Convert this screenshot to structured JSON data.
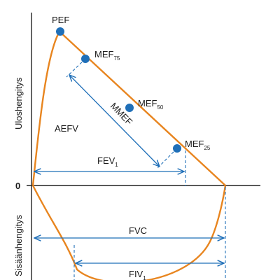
{
  "colors": {
    "curve": "#e8851f",
    "point": "#1f6fb8",
    "arrow": "#1f6fb8",
    "axis": "#222222",
    "text": "#1a1a1a"
  },
  "axes": {
    "y_top_label": "Uloshengitys",
    "y_bottom_label": "Sisäänhengitys",
    "zero_label": "0"
  },
  "labels": {
    "pef": "PEF",
    "mef75": {
      "main": "MEF",
      "sub": "75"
    },
    "mef50": {
      "main": "MEF",
      "sub": "50"
    },
    "mef25": {
      "main": "MEF",
      "sub": "25"
    },
    "aefv": "AEFV",
    "mmef": "MMEF",
    "fev1": {
      "main": "FEV",
      "sub": "1"
    },
    "fvc": "FVC",
    "fiv1": {
      "main": "FIV",
      "sub": "1"
    }
  }
}
